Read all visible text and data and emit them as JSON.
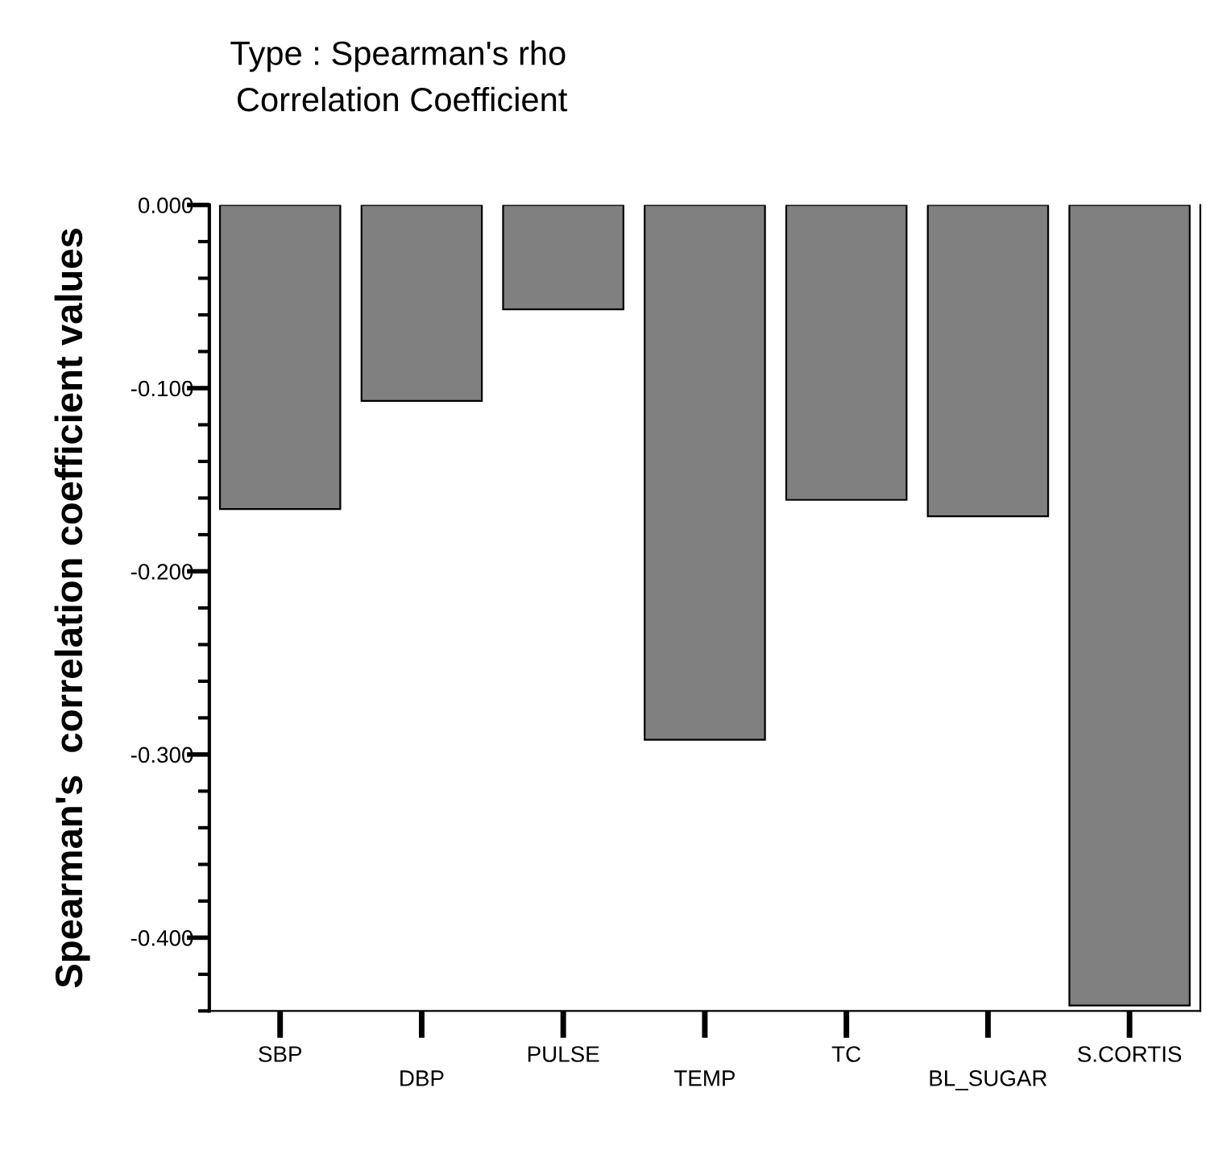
{
  "chart_data": {
    "type": "bar",
    "title": "Type : Spearman's rho",
    "subtitle": "Correlation Coefficient",
    "ylabel": "Spearman's  correlation coefficient values",
    "categories": [
      "SBP",
      "DBP",
      "PULSE",
      "TEMP",
      "TC",
      "BL_SUGAR",
      "S.CORTIS"
    ],
    "values": [
      -0.166,
      -0.107,
      -0.057,
      -0.292,
      -0.161,
      -0.17,
      -0.437
    ],
    "color": "#808080",
    "ylim": [
      -0.44,
      0
    ],
    "yticks": [
      {
        "value": 0,
        "label": "0.000"
      },
      {
        "value": -0.02,
        "label": null
      },
      {
        "value": -0.04,
        "label": null
      },
      {
        "value": -0.06,
        "label": null
      },
      {
        "value": -0.08,
        "label": null
      },
      {
        "value": -0.1,
        "label": "-0.100"
      },
      {
        "value": -0.12,
        "label": null
      },
      {
        "value": -0.14,
        "label": null
      },
      {
        "value": -0.16,
        "label": null
      },
      {
        "value": -0.18,
        "label": null
      },
      {
        "value": -0.2,
        "label": "-0.200"
      },
      {
        "value": -0.22,
        "label": null
      },
      {
        "value": -0.24,
        "label": null
      },
      {
        "value": -0.26,
        "label": null
      },
      {
        "value": -0.28,
        "label": null
      },
      {
        "value": -0.3,
        "label": "-0.300"
      },
      {
        "value": -0.32,
        "label": null
      },
      {
        "value": -0.34,
        "label": null
      },
      {
        "value": -0.36,
        "label": null
      },
      {
        "value": -0.38,
        "label": null
      },
      {
        "value": -0.4,
        "label": "-0.400"
      },
      {
        "value": -0.42,
        "label": null
      },
      {
        "value": -0.44,
        "label": null
      }
    ],
    "grid": false,
    "legend": false
  }
}
